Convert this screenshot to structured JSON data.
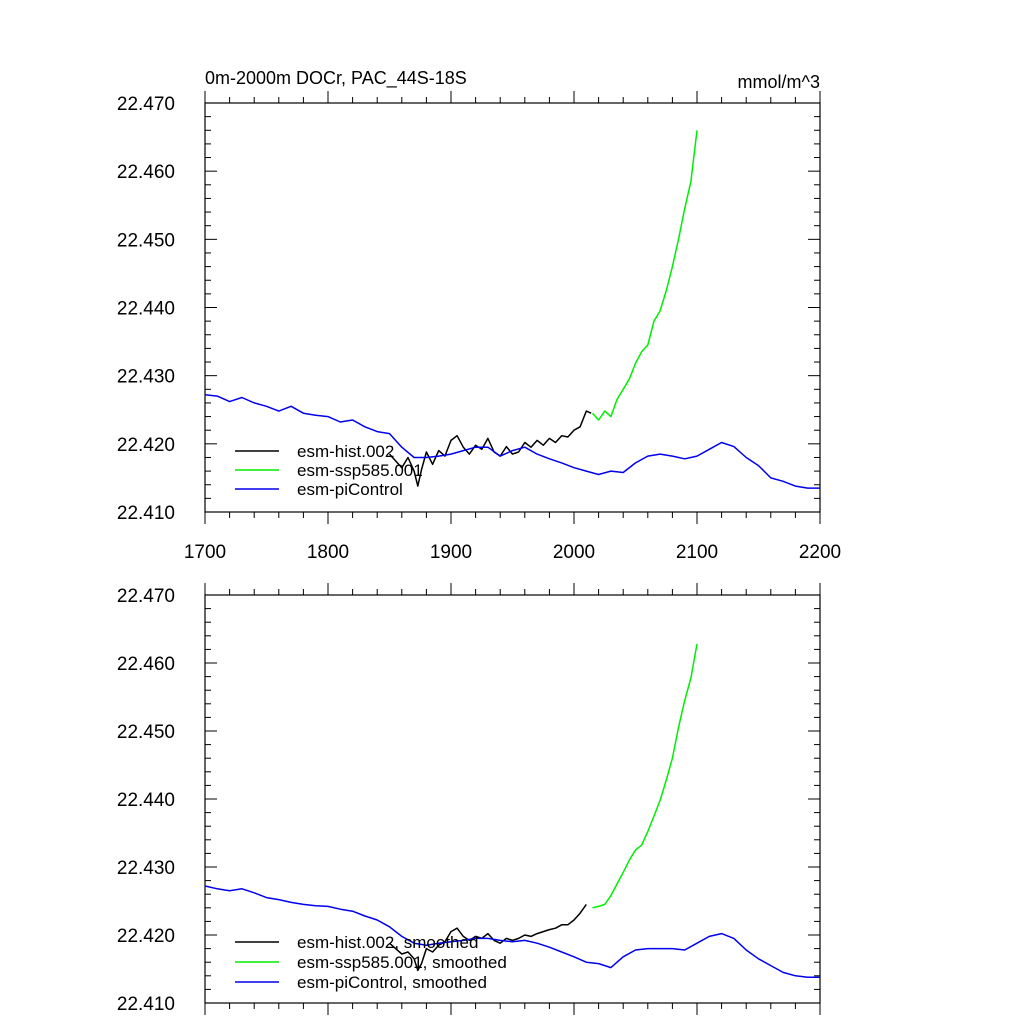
{
  "chart_data": [
    {
      "type": "line",
      "title_left": "0m-2000m DOCr, PAC_44S-18S",
      "title_right": "mmol/m^3",
      "xlim": [
        1700,
        2200
      ],
      "ylim": [
        22.41,
        22.47
      ],
      "xticks": [
        1700,
        1800,
        1900,
        2000,
        2100,
        2200
      ],
      "xtick_labels": [
        "1700",
        "1800",
        "1900",
        "2000",
        "2100",
        "2200"
      ],
      "yticks": [
        22.41,
        22.42,
        22.43,
        22.44,
        22.45,
        22.46,
        22.47
      ],
      "ytick_labels": [
        "22.410",
        "22.420",
        "22.430",
        "22.440",
        "22.450",
        "22.460",
        "22.470"
      ],
      "show_xtick_labels": true,
      "grid": false,
      "legend_position": "bottom-left",
      "series": [
        {
          "name": "esm-hist.002",
          "color": "#000000",
          "x": [
            1850,
            1855,
            1860,
            1865,
            1870,
            1873,
            1876,
            1880,
            1885,
            1890,
            1895,
            1900,
            1905,
            1910,
            1915,
            1920,
            1925,
            1930,
            1935,
            1940,
            1945,
            1950,
            1955,
            1960,
            1965,
            1970,
            1975,
            1980,
            1985,
            1990,
            1995,
            2000,
            2005,
            2010,
            2014
          ],
          "y": [
            22.4185,
            22.4175,
            22.4165,
            22.418,
            22.416,
            22.4138,
            22.4162,
            22.4188,
            22.417,
            22.419,
            22.4182,
            22.4205,
            22.4212,
            22.4195,
            22.4185,
            22.4198,
            22.4192,
            22.4208,
            22.4188,
            22.4182,
            22.4196,
            22.4185,
            22.4188,
            22.4202,
            22.4195,
            22.4205,
            22.4198,
            22.4208,
            22.4202,
            22.4212,
            22.421,
            22.422,
            22.4225,
            22.4248,
            22.4245
          ]
        },
        {
          "name": "esm-ssp585.001",
          "color": "#00ee00",
          "x": [
            2015,
            2020,
            2025,
            2030,
            2035,
            2040,
            2045,
            2050,
            2055,
            2060,
            2065,
            2070,
            2075,
            2080,
            2085,
            2090,
            2095,
            2100
          ],
          "y": [
            22.4245,
            22.4235,
            22.4248,
            22.424,
            22.4265,
            22.428,
            22.4295,
            22.4318,
            22.4335,
            22.4345,
            22.438,
            22.4395,
            22.4425,
            22.446,
            22.45,
            22.4545,
            22.4585,
            22.466
          ]
        },
        {
          "name": "esm-piControl",
          "color": "#0000ee",
          "x": [
            1700,
            1710,
            1720,
            1730,
            1740,
            1750,
            1760,
            1770,
            1780,
            1790,
            1800,
            1810,
            1820,
            1830,
            1840,
            1850,
            1860,
            1870,
            1880,
            1890,
            1900,
            1910,
            1920,
            1930,
            1940,
            1950,
            1960,
            1970,
            1980,
            1990,
            2000,
            2010,
            2020,
            2030,
            2040,
            2050,
            2060,
            2070,
            2080,
            2090,
            2100,
            2110,
            2120,
            2130,
            2140,
            2150,
            2160,
            2170,
            2180,
            2190,
            2200
          ],
          "y": [
            22.4272,
            22.427,
            22.4262,
            22.4268,
            22.426,
            22.4255,
            22.4248,
            22.4255,
            22.4245,
            22.4242,
            22.424,
            22.4232,
            22.4235,
            22.4225,
            22.4218,
            22.4215,
            22.4195,
            22.418,
            22.418,
            22.4182,
            22.4185,
            22.419,
            22.4195,
            22.4195,
            22.4182,
            22.419,
            22.4195,
            22.4185,
            22.4178,
            22.4172,
            22.4165,
            22.416,
            22.4155,
            22.416,
            22.4158,
            22.4172,
            22.4182,
            22.4185,
            22.4182,
            22.4178,
            22.4182,
            22.4192,
            22.4202,
            22.4196,
            22.418,
            22.4168,
            22.415,
            22.4145,
            22.4138,
            22.4135,
            22.4135
          ]
        }
      ]
    },
    {
      "type": "line",
      "xlim": [
        1700,
        2200
      ],
      "ylim": [
        22.41,
        22.47
      ],
      "xticks": [
        1700,
        1800,
        1900,
        2000,
        2100,
        2200
      ],
      "yticks": [
        22.41,
        22.42,
        22.43,
        22.44,
        22.45,
        22.46,
        22.47
      ],
      "ytick_labels": [
        "22.410",
        "22.420",
        "22.430",
        "22.440",
        "22.450",
        "22.460",
        "22.470"
      ],
      "show_xtick_labels": false,
      "grid": false,
      "legend_position": "bottom-left",
      "series": [
        {
          "name": "esm-hist.002, smoothed",
          "color": "#000000",
          "x": [
            1850,
            1855,
            1860,
            1865,
            1870,
            1873,
            1876,
            1880,
            1885,
            1890,
            1895,
            1900,
            1905,
            1910,
            1915,
            1920,
            1925,
            1930,
            1935,
            1940,
            1945,
            1950,
            1955,
            1960,
            1965,
            1970,
            1975,
            1980,
            1985,
            1990,
            1995,
            2000,
            2005,
            2010
          ],
          "y": [
            22.4188,
            22.418,
            22.4172,
            22.4175,
            22.4165,
            22.4148,
            22.4158,
            22.418,
            22.4175,
            22.4185,
            22.419,
            22.4205,
            22.421,
            22.4198,
            22.4192,
            22.4198,
            22.4195,
            22.4202,
            22.4192,
            22.4188,
            22.4195,
            22.4192,
            22.4195,
            22.42,
            22.4198,
            22.4202,
            22.4205,
            22.4208,
            22.421,
            22.4215,
            22.4215,
            22.4222,
            22.4232,
            22.4245
          ]
        },
        {
          "name": "esm-ssp585.001, smoothed",
          "color": "#00ee00",
          "x": [
            2015,
            2020,
            2025,
            2030,
            2035,
            2040,
            2045,
            2050,
            2055,
            2060,
            2065,
            2070,
            2075,
            2080,
            2085,
            2090,
            2095,
            2100
          ],
          "y": [
            22.424,
            22.4242,
            22.4245,
            22.4258,
            22.4275,
            22.4292,
            22.431,
            22.4325,
            22.4332,
            22.4352,
            22.4375,
            22.4398,
            22.4428,
            22.446,
            22.4505,
            22.4545,
            22.4578,
            22.4628
          ]
        },
        {
          "name": "esm-piControl, smoothed",
          "color": "#0000ee",
          "x": [
            1700,
            1710,
            1720,
            1730,
            1740,
            1750,
            1760,
            1770,
            1780,
            1790,
            1800,
            1810,
            1820,
            1830,
            1840,
            1850,
            1860,
            1870,
            1880,
            1890,
            1900,
            1910,
            1920,
            1930,
            1940,
            1950,
            1960,
            1970,
            1980,
            1990,
            2000,
            2010,
            2020,
            2030,
            2040,
            2050,
            2060,
            2070,
            2080,
            2090,
            2100,
            2110,
            2120,
            2130,
            2140,
            2150,
            2160,
            2170,
            2180,
            2190,
            2200
          ],
          "y": [
            22.4272,
            22.4268,
            22.4265,
            22.4268,
            22.4262,
            22.4255,
            22.4252,
            22.4248,
            22.4245,
            22.4243,
            22.4242,
            22.4238,
            22.4235,
            22.4228,
            22.4222,
            22.4212,
            22.4198,
            22.4188,
            22.4185,
            22.4188,
            22.419,
            22.4192,
            22.4195,
            22.4195,
            22.4192,
            22.419,
            22.4192,
            22.4188,
            22.4182,
            22.4175,
            22.4168,
            22.416,
            22.4158,
            22.4152,
            22.4168,
            22.4178,
            22.418,
            22.418,
            22.418,
            22.4178,
            22.4188,
            22.4198,
            22.4202,
            22.4195,
            22.4178,
            22.4165,
            22.4155,
            22.4145,
            22.414,
            22.4138,
            22.4138
          ]
        }
      ]
    }
  ]
}
